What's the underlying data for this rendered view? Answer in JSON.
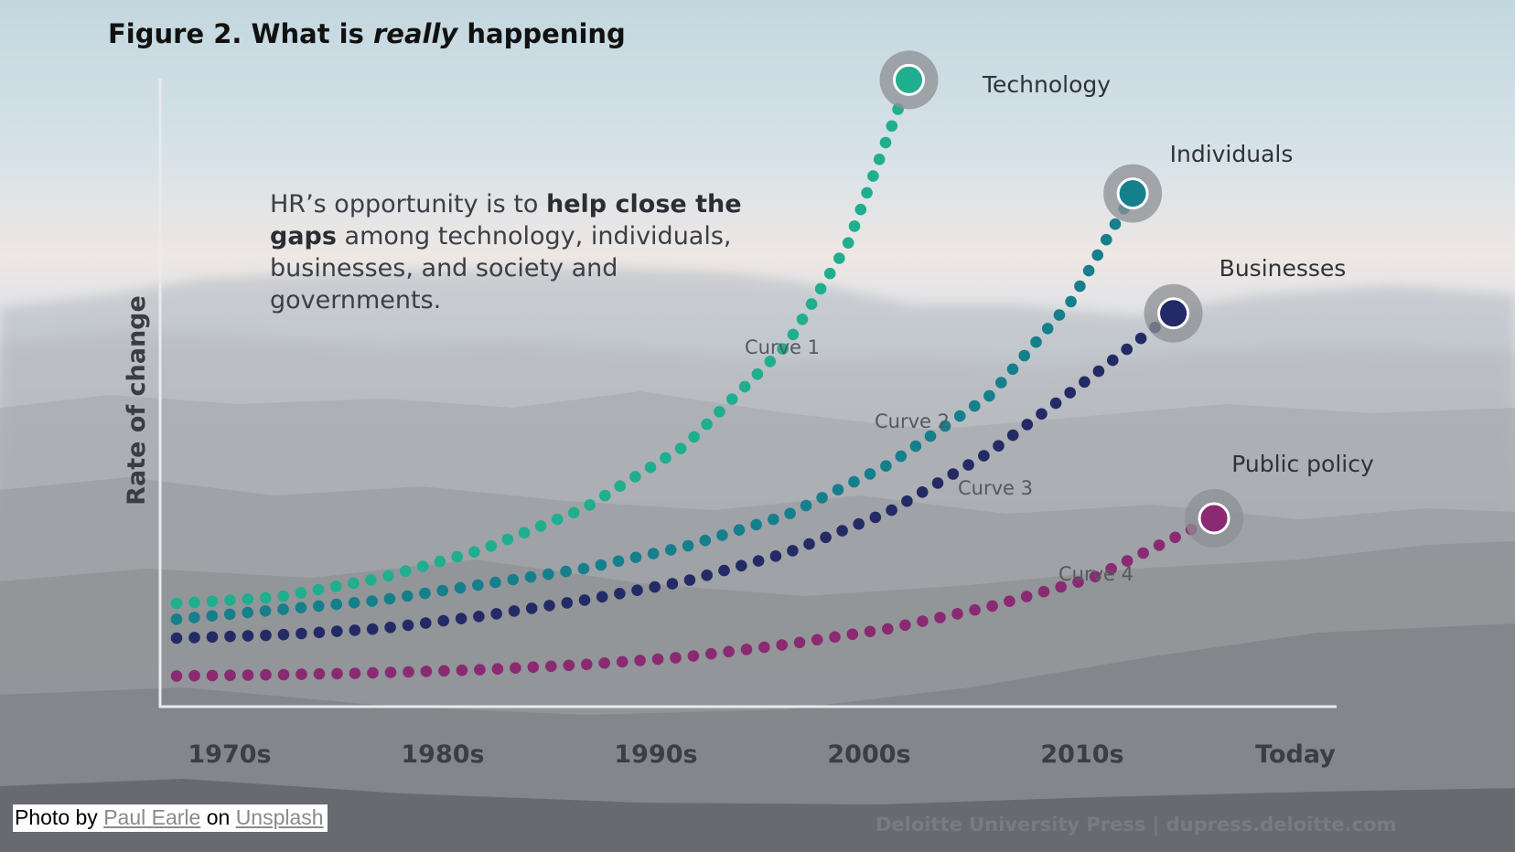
{
  "title": {
    "prefix": "Figure 2. What is ",
    "emphasis": "really",
    "suffix": " happening"
  },
  "note": {
    "part1": "HR’s opportunity is to ",
    "bold": "help close the gaps",
    "part2": " among technology, individuals, businesses, and society and governments."
  },
  "source": "Deloitte University Press  |  dupress.deloitte.com",
  "credit": {
    "prefix": "Photo by ",
    "author": "Paul Earle",
    "middle": " on ",
    "site": "Unsplash"
  },
  "colors": {
    "technology": "#1fae8e",
    "individuals": "#157f8c",
    "businesses": "#232a66",
    "public_policy": "#8a2a72",
    "axis": "#e6e8ea"
  },
  "chart_data": {
    "type": "line",
    "title": "Figure 2. What is really happening",
    "xlabel": "",
    "ylabel": "Rate of change",
    "categories": [
      "1970s",
      "1980s",
      "1990s",
      "2000s",
      "2010s",
      "Today"
    ],
    "x_range": [
      1970,
      2025
    ],
    "y_axis": "unlabeled, no tick values",
    "grid": false,
    "series": [
      {
        "name": "Technology",
        "curve_label": "Curve 1",
        "color": "#1fae8e",
        "x": [
          1970,
          1975,
          1980,
          1985,
          1990,
          1995,
          2000,
          2003,
          2006
        ],
        "y": [
          1.0,
          2.0,
          5.0,
          9.5,
          16.0,
          26.0,
          42.0,
          58.0,
          84.0
        ]
      },
      {
        "name": "Individuals",
        "curve_label": "Curve 2",
        "color": "#157f8c",
        "x": [
          1970,
          1975,
          1980,
          1985,
          1990,
          1995,
          2000,
          2005,
          2010,
          2014,
          2017
        ],
        "y": [
          -1.5,
          0.0,
          1.5,
          4.0,
          6.5,
          10.0,
          15.0,
          23.0,
          34.0,
          49.0,
          66.0
        ]
      },
      {
        "name": "Businesses",
        "curve_label": "Curve 3",
        "color": "#232a66",
        "x": [
          1970,
          1975,
          1980,
          1985,
          1990,
          1995,
          2000,
          2005,
          2010,
          2015,
          2019
        ],
        "y": [
          -4.5,
          -4.0,
          -3.0,
          -1.0,
          1.5,
          4.5,
          9.0,
          15.5,
          25.0,
          37.0,
          47.0
        ]
      },
      {
        "name": "Public policy",
        "curve_label": "Curve 4",
        "color": "#8a2a72",
        "x": [
          1970,
          1975,
          1980,
          1985,
          1990,
          1995,
          2000,
          2005,
          2010,
          2015,
          2021
        ],
        "y": [
          -10.5,
          -10.3,
          -10.0,
          -9.5,
          -8.7,
          -7.5,
          -5.5,
          -3.0,
          0.5,
          5.0,
          14.5
        ]
      }
    ]
  }
}
